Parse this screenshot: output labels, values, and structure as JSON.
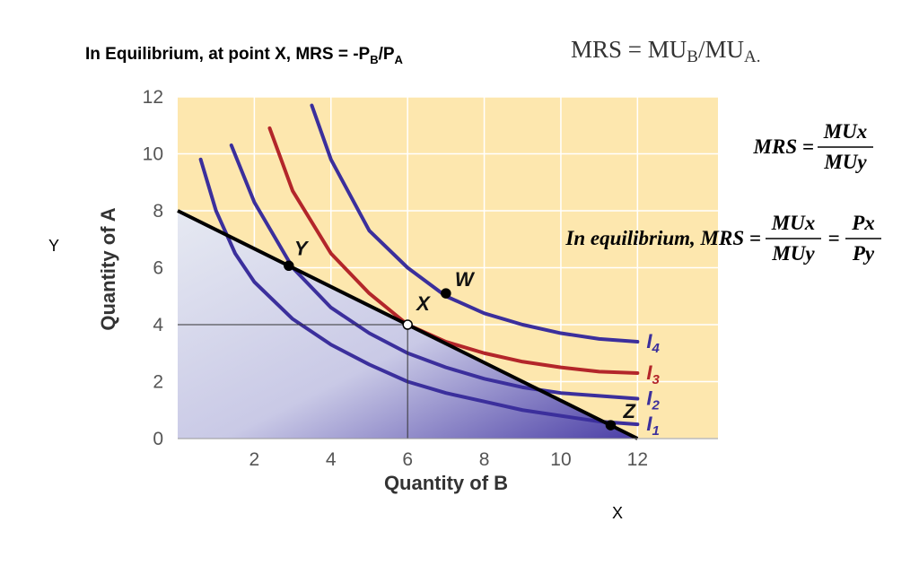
{
  "chart_data": {
    "type": "line",
    "title_parts": [
      "In Equilibrium, at point X, MRS = -P",
      "B",
      "/P",
      "A"
    ],
    "formula_parts": [
      "MRS = MU",
      "B",
      "/MU",
      "A."
    ],
    "mrs_formula": {
      "left": "MRS =",
      "numerator": "MUx",
      "denominator": "MUy"
    },
    "equilibrium_formula": {
      "left": "In equilibrium, MRS =",
      "numerator": "MUx",
      "denominator": "MUy",
      "equals": "=",
      "numerator2": "Px",
      "denominator2": "Py"
    },
    "side_labels": {
      "y": "Y",
      "x": "X"
    },
    "xlabel": "Quantity of B",
    "ylabel": "Quantity of A",
    "xlim": [
      0,
      14.1
    ],
    "ylim": [
      0,
      12
    ],
    "xticks": [
      2,
      4,
      6,
      8,
      10,
      12
    ],
    "yticks": [
      0,
      2,
      4,
      6,
      8,
      10,
      12
    ],
    "grid": true,
    "background": "#fde7ae",
    "budget_line": {
      "color": "#000000",
      "x": [
        0,
        12
      ],
      "values": [
        8,
        0
      ]
    },
    "series": [
      {
        "name": "I",
        "index_label": "1",
        "color": "#3b2f9c",
        "x": [
          0.6,
          1,
          1.5,
          2,
          3,
          4,
          5,
          6,
          7,
          8,
          9,
          10,
          11,
          12
        ],
        "values": [
          9.8,
          8.0,
          6.5,
          5.5,
          4.2,
          3.3,
          2.6,
          2.0,
          1.6,
          1.3,
          1.0,
          0.8,
          0.6,
          0.5
        ]
      },
      {
        "name": "I",
        "index_label": "2",
        "color": "#3b2f9c",
        "x": [
          1.4,
          2,
          3,
          4,
          5,
          6,
          7,
          8,
          9,
          10,
          11,
          12
        ],
        "values": [
          10.3,
          8.3,
          6.0,
          4.6,
          3.7,
          3.0,
          2.5,
          2.1,
          1.8,
          1.6,
          1.5,
          1.4
        ]
      },
      {
        "name": "I",
        "index_label": "3",
        "color": "#b3262a",
        "x": [
          2.4,
          3,
          4,
          5,
          6,
          7,
          8,
          9,
          10,
          11,
          12
        ],
        "values": [
          10.9,
          8.7,
          6.5,
          5.1,
          4.0,
          3.4,
          3.0,
          2.7,
          2.5,
          2.35,
          2.3
        ]
      },
      {
        "name": "I",
        "index_label": "4",
        "color": "#3b2f9c",
        "x": [
          3.5,
          4,
          5,
          6,
          7,
          8,
          9,
          10,
          11,
          12
        ],
        "values": [
          11.7,
          9.8,
          7.3,
          6.0,
          5.0,
          4.4,
          4.0,
          3.7,
          3.5,
          3.4
        ]
      }
    ],
    "points": [
      {
        "label": "Y",
        "x": 2.9,
        "y": 6.07,
        "fill": "#000000"
      },
      {
        "label": "X",
        "x": 6,
        "y": 4,
        "fill": "#ffffff"
      },
      {
        "label": "W",
        "x": 7,
        "y": 5.1,
        "fill": "#000000"
      },
      {
        "label": "Z",
        "x": 11.3,
        "y": 0.47,
        "fill": "#000000"
      }
    ]
  }
}
